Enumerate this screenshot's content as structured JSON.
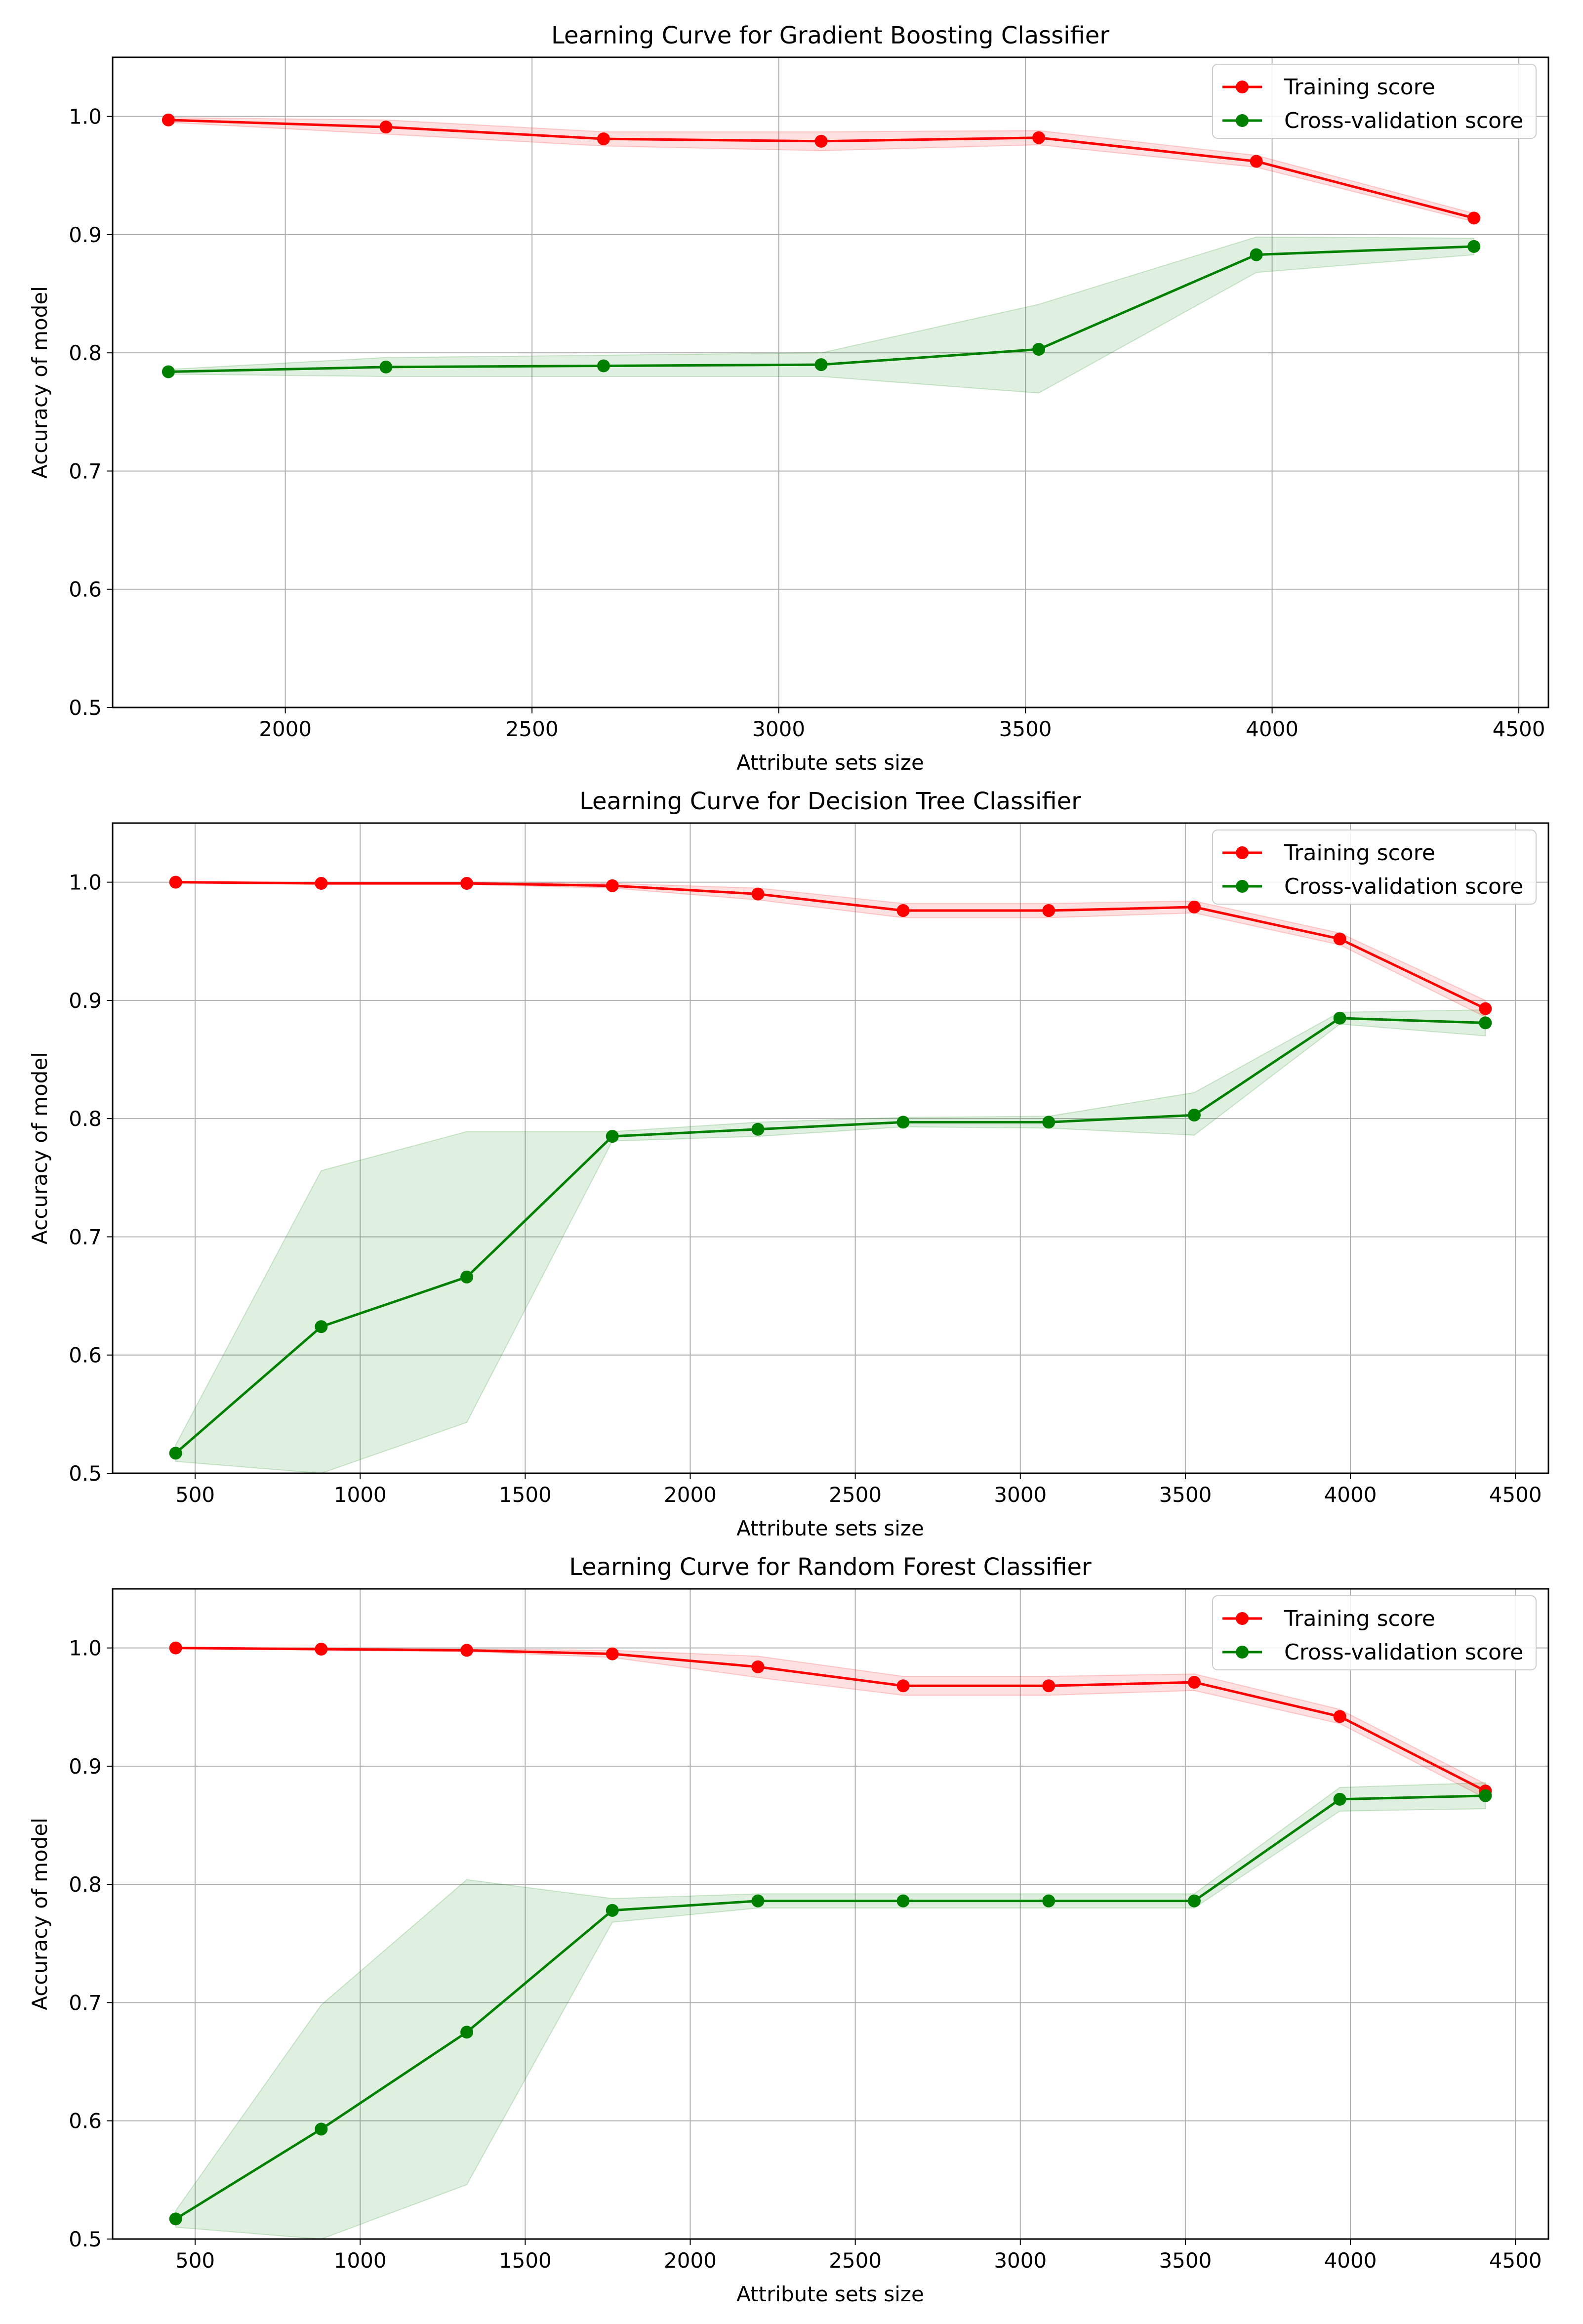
{
  "chart_data": [
    {
      "type": "line",
      "title": "Learning Curve for Gradient Boosting Classifier",
      "xlabel": "Attribute sets size",
      "ylabel": "Accuracy of model",
      "xlim": [
        1650,
        4560
      ],
      "ylim": [
        0.5,
        1.05
      ],
      "xticks": [
        2000,
        2500,
        3000,
        3500,
        4000,
        4500
      ],
      "yticks": [
        0.5,
        0.6,
        0.7,
        0.8,
        0.9,
        1.0
      ],
      "xtick_labels": [
        "2000",
        "2500",
        "3000",
        "3500",
        "4000",
        "4500"
      ],
      "ytick_labels": [
        "0.5",
        "0.6",
        "0.7",
        "0.8",
        "0.9",
        "1.0"
      ],
      "grid": true,
      "legend_position": "top-right",
      "x": [
        1763,
        2204,
        2645,
        3086,
        3527,
        3968,
        4409
      ],
      "series": [
        {
          "name": "Training score",
          "color": "#ff0000",
          "values": [
            0.997,
            0.991,
            0.981,
            0.979,
            0.982,
            0.962,
            0.914
          ],
          "band_low": [
            0.995,
            0.985,
            0.975,
            0.971,
            0.976,
            0.957,
            0.911
          ],
          "band_high": [
            0.999,
            0.997,
            0.987,
            0.987,
            0.988,
            0.967,
            0.918
          ]
        },
        {
          "name": "Cross-validation score",
          "color": "#008000",
          "values": [
            0.784,
            0.788,
            0.789,
            0.79,
            0.803,
            0.883,
            0.89
          ],
          "band_low": [
            0.782,
            0.78,
            0.78,
            0.78,
            0.766,
            0.868,
            0.883
          ],
          "band_high": [
            0.786,
            0.796,
            0.798,
            0.8,
            0.841,
            0.898,
            0.897
          ]
        }
      ]
    },
    {
      "type": "line",
      "title": "Learning Curve for Decision Tree Classifier",
      "xlabel": "Attribute sets size",
      "ylabel": "Accuracy of model",
      "xlim": [
        250,
        4600
      ],
      "ylim": [
        0.5,
        1.05
      ],
      "xticks": [
        500,
        1000,
        1500,
        2000,
        2500,
        3000,
        3500,
        4000,
        4500
      ],
      "yticks": [
        0.5,
        0.6,
        0.7,
        0.8,
        0.9,
        1.0
      ],
      "xtick_labels": [
        "500",
        "1000",
        "1500",
        "2000",
        "2500",
        "3000",
        "3500",
        "4000",
        "4500"
      ],
      "ytick_labels": [
        "0.5",
        "0.6",
        "0.7",
        "0.8",
        "0.9",
        "1.0"
      ],
      "grid": true,
      "legend_position": "top-right",
      "x": [
        441,
        882,
        1323,
        1764,
        2205,
        2645,
        3086,
        3527,
        3968,
        4409
      ],
      "series": [
        {
          "name": "Training score",
          "color": "#ff0000",
          "values": [
            1.0,
            0.999,
            0.999,
            0.997,
            0.99,
            0.976,
            0.976,
            0.979,
            0.952,
            0.893
          ],
          "band_low": [
            1.0,
            0.998,
            0.998,
            0.995,
            0.985,
            0.97,
            0.97,
            0.974,
            0.947,
            0.886
          ],
          "band_high": [
            1.0,
            1.0,
            1.0,
            0.999,
            0.995,
            0.982,
            0.982,
            0.984,
            0.957,
            0.9
          ]
        },
        {
          "name": "Cross-validation score",
          "color": "#008000",
          "values": [
            0.517,
            0.624,
            0.666,
            0.785,
            0.791,
            0.797,
            0.797,
            0.803,
            0.885,
            0.881
          ],
          "band_low": [
            0.51,
            0.5,
            0.543,
            0.781,
            0.785,
            0.793,
            0.792,
            0.786,
            0.88,
            0.87
          ],
          "band_high": [
            0.524,
            0.756,
            0.789,
            0.789,
            0.797,
            0.801,
            0.802,
            0.822,
            0.89,
            0.892
          ]
        }
      ]
    },
    {
      "type": "line",
      "title": "Learning Curve for Random Forest Classifier",
      "xlabel": "Attribute sets size",
      "ylabel": "Accuracy of model",
      "xlim": [
        250,
        4600
      ],
      "ylim": [
        0.5,
        1.05
      ],
      "xticks": [
        500,
        1000,
        1500,
        2000,
        2500,
        3000,
        3500,
        4000,
        4500
      ],
      "yticks": [
        0.5,
        0.6,
        0.7,
        0.8,
        0.9,
        1.0
      ],
      "xtick_labels": [
        "500",
        "1000",
        "1500",
        "2000",
        "2500",
        "3000",
        "3500",
        "4000",
        "4500"
      ],
      "ytick_labels": [
        "0.5",
        "0.6",
        "0.7",
        "0.8",
        "0.9",
        "1.0"
      ],
      "grid": true,
      "legend_position": "top-right",
      "x": [
        441,
        882,
        1323,
        1764,
        2205,
        2645,
        3086,
        3527,
        3968,
        4409
      ],
      "series": [
        {
          "name": "Training score",
          "color": "#ff0000",
          "values": [
            1.0,
            0.999,
            0.998,
            0.995,
            0.984,
            0.968,
            0.968,
            0.971,
            0.942,
            0.879
          ],
          "band_low": [
            1.0,
            0.998,
            0.997,
            0.992,
            0.975,
            0.96,
            0.96,
            0.964,
            0.936,
            0.873
          ],
          "band_high": [
            1.0,
            1.0,
            0.999,
            0.998,
            0.993,
            0.976,
            0.976,
            0.978,
            0.948,
            0.885
          ]
        },
        {
          "name": "Cross-validation score",
          "color": "#008000",
          "values": [
            0.517,
            0.593,
            0.675,
            0.778,
            0.786,
            0.786,
            0.786,
            0.786,
            0.872,
            0.875
          ],
          "band_low": [
            0.51,
            0.5,
            0.546,
            0.768,
            0.78,
            0.78,
            0.78,
            0.78,
            0.862,
            0.864
          ],
          "band_high": [
            0.524,
            0.698,
            0.804,
            0.788,
            0.792,
            0.792,
            0.792,
            0.792,
            0.882,
            0.886
          ]
        }
      ]
    }
  ]
}
